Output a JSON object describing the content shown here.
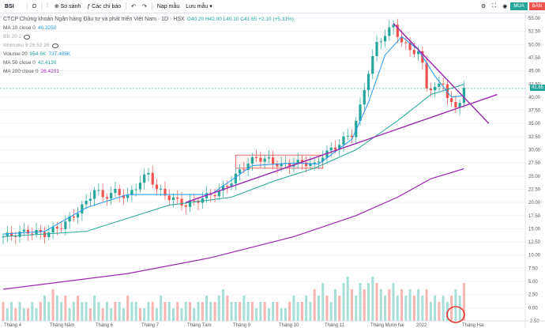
{
  "toolbar": {
    "symbol": "BSI",
    "interval": "D",
    "compare_label": "So sánh",
    "indicators_label": "Các chỉ báo",
    "templates_label": "Nạp mẫu",
    "save_label": "Lưu mẫu"
  },
  "trade": {
    "buy_label": "MUA",
    "sell_label": "BÁN"
  },
  "legend": {
    "title": "CTCP Chứng khoán Ngân hàng Đầu tư và phát triển Việt Nam · 1D · HSX",
    "ohlc": "O40.20 H42.00 L40.10 C41.65 +2.10 (+5.31%)",
    "ma10_label": "MA 10 close 0",
    "ma10_value": "40.3250",
    "bb_label": "BB 20 2",
    "ichimoku_label": "Ichimoku 9 26 52 26",
    "volume_label": "Volume 20",
    "volume_value1": "954.6K",
    "volume_value2": "737.485K",
    "ma50_label": "MA 50 close 0",
    "ma50_value": "42.4130",
    "ma200_label": "MA 200 close 0",
    "ma200_value": "26.4201"
  },
  "current_price": "41.65",
  "colors": {
    "up": "#26a69a",
    "down": "#ef5350",
    "ma10": "#2196f3",
    "ma50": "#26a69a",
    "ma200": "#9c27b0",
    "trend": "#9c27b0"
  },
  "chart_data": {
    "type": "candlestick",
    "y_ticks": [
      55.0,
      52.5,
      50.0,
      47.5,
      45.0,
      42.5,
      40.0,
      37.5,
      35.0,
      32.5,
      30.0,
      27.5,
      25.0,
      22.5,
      20.0,
      17.5,
      15.0,
      12.5,
      10.0,
      7.5,
      5.0,
      2.5,
      0.0,
      -2.5
    ],
    "x_labels": [
      "Tháng 4",
      "Tháng Năm",
      "Tháng 6",
      "Tháng 7",
      "Tháng Tám",
      "Tháng 9",
      "Tháng 10",
      "Tháng 11",
      "Tháng Mười hai",
      "2022",
      "Tháng Hai"
    ],
    "ylim": [
      -2.5,
      55.0
    ],
    "close_path": [
      [
        0,
        13.5
      ],
      [
        6,
        14.5
      ],
      [
        10,
        14.0
      ],
      [
        14,
        15.5
      ],
      [
        17,
        17.5
      ],
      [
        20,
        20.0
      ],
      [
        22,
        22.5
      ],
      [
        24,
        21.0
      ],
      [
        27,
        22.0
      ],
      [
        30,
        21.0
      ],
      [
        33,
        24.0
      ],
      [
        35,
        25.5
      ],
      [
        37,
        22.5
      ],
      [
        40,
        21.0
      ],
      [
        44,
        19.5
      ],
      [
        47,
        20.5
      ],
      [
        50,
        21.5
      ],
      [
        52,
        22.0
      ],
      [
        55,
        24.0
      ],
      [
        57,
        26.0
      ],
      [
        59,
        27.5
      ],
      [
        61,
        28.5
      ],
      [
        64,
        28.0
      ],
      [
        67,
        27.0
      ],
      [
        70,
        27.5
      ],
      [
        73,
        27.5
      ],
      [
        75,
        27.0
      ],
      [
        77,
        29.0
      ],
      [
        80,
        30.5
      ],
      [
        82,
        32.0
      ],
      [
        84,
        33.0
      ],
      [
        86,
        38.0
      ],
      [
        88,
        45.0
      ],
      [
        90,
        50.0
      ],
      [
        92,
        52.0
      ],
      [
        94,
        53.5
      ],
      [
        96,
        50.5
      ],
      [
        98,
        49.0
      ],
      [
        100,
        48.5
      ],
      [
        101,
        46.0
      ],
      [
        102,
        42.0
      ],
      [
        104,
        41.5
      ],
      [
        106,
        43.0
      ],
      [
        107,
        40.0
      ],
      [
        108,
        38.5
      ],
      [
        109,
        38.0
      ],
      [
        110,
        39.5
      ],
      [
        111,
        41.65
      ]
    ],
    "ma10_path": [
      [
        0,
        14.0
      ],
      [
        10,
        14.5
      ],
      [
        20,
        19.0
      ],
      [
        30,
        21.5
      ],
      [
        40,
        21.5
      ],
      [
        50,
        21.5
      ],
      [
        60,
        27.0
      ],
      [
        70,
        27.5
      ],
      [
        76,
        27.3
      ],
      [
        84,
        32.0
      ],
      [
        88,
        39.0
      ],
      [
        92,
        48.0
      ],
      [
        96,
        51.5
      ],
      [
        100,
        49.0
      ],
      [
        104,
        44.0
      ],
      [
        108,
        40.0
      ],
      [
        111,
        40.3
      ]
    ],
    "ma50_path": [
      [
        0,
        13.5
      ],
      [
        20,
        14.5
      ],
      [
        40,
        19.5
      ],
      [
        55,
        21.0
      ],
      [
        65,
        24.0
      ],
      [
        75,
        26.5
      ],
      [
        85,
        30.0
      ],
      [
        95,
        35.5
      ],
      [
        103,
        40.5
      ],
      [
        111,
        42.4
      ]
    ],
    "ma200_path": [
      [
        0,
        3.5
      ],
      [
        30,
        6.5
      ],
      [
        50,
        9.5
      ],
      [
        70,
        13.5
      ],
      [
        85,
        17.5
      ],
      [
        95,
        21.0
      ],
      [
        103,
        24.5
      ],
      [
        111,
        26.4
      ]
    ],
    "trendlines": [
      {
        "from": [
          44,
          20.0
        ],
        "to": [
          119,
          40.5
        ],
        "color": "#9c27b0"
      },
      {
        "from": [
          94,
          54.0
        ],
        "to": [
          117,
          35.0
        ],
        "color": "#9c27b0"
      }
    ],
    "box": {
      "x1": 56,
      "x2": 77,
      "y1": 26.5,
      "y2": 29.0
    },
    "volume": [
      3,
      2,
      3,
      2,
      3,
      2,
      2,
      3,
      2,
      3,
      4,
      3,
      5,
      4,
      3,
      4,
      2,
      3,
      4,
      3,
      3,
      2,
      4,
      3,
      2,
      3,
      2,
      3,
      3,
      2,
      4,
      3,
      3,
      2,
      2,
      3,
      3,
      2,
      4,
      3,
      3,
      2,
      3,
      2,
      3,
      3,
      2,
      3,
      3,
      4,
      3,
      3,
      4,
      5,
      4,
      3,
      3,
      3,
      4,
      3,
      3,
      2,
      3,
      3,
      2,
      3,
      3,
      2,
      2,
      3,
      4,
      3,
      3,
      4,
      3,
      5,
      4,
      6,
      4,
      3,
      5,
      4,
      6,
      7,
      5,
      4,
      6,
      5,
      6,
      7,
      6,
      5,
      4,
      5,
      6,
      4,
      5,
      4,
      5,
      4,
      5,
      4,
      5,
      3,
      4,
      3,
      4,
      3,
      4,
      5,
      4,
      6
    ]
  }
}
